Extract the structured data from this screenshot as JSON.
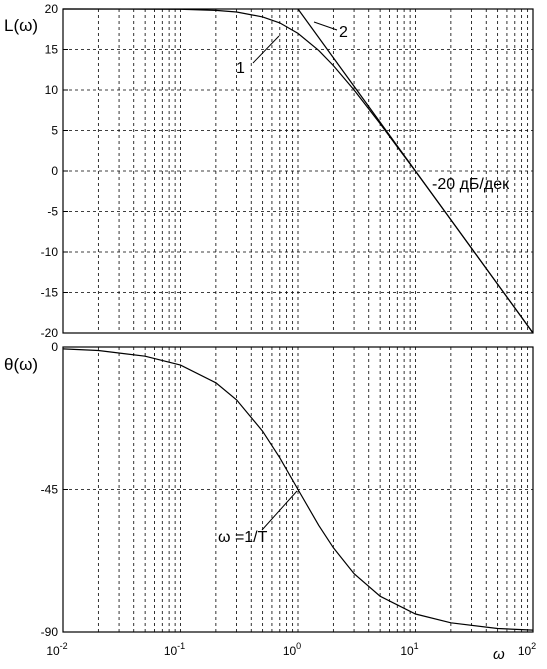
{
  "chart_data": [
    {
      "type": "line",
      "ylabel": "L(ω)",
      "xscale": "log",
      "xlim": [
        0.01,
        100
      ],
      "ylim": [
        -20,
        20
      ],
      "yticks": [
        20,
        15,
        10,
        5,
        0,
        -5,
        -10,
        -15,
        -20
      ],
      "grid": true,
      "series": [
        {
          "x": [
            0.01,
            0.05,
            0.1,
            0.2,
            0.3,
            0.5,
            0.7,
            1,
            1.5,
            2,
            3,
            5,
            7,
            10,
            20,
            50,
            100
          ],
          "values": [
            20.0,
            19.99,
            19.96,
            19.83,
            19.63,
            19.03,
            18.28,
            16.99,
            14.89,
            13.01,
            10.0,
            5.85,
            2.97,
            -0.04,
            -6.02,
            -13.98,
            -20.0
          ]
        },
        {
          "x": [
            1,
            100
          ],
          "values": [
            20,
            -20
          ]
        }
      ],
      "annotations": [
        {
          "text": "1",
          "target_x": 0.85,
          "target_y": 18.2
        },
        {
          "text": "2",
          "target_x": 1.5,
          "target_y": 16.6
        },
        {
          "text": "-20 дБ/дек"
        }
      ]
    },
    {
      "type": "line",
      "ylabel": "θ(ω)",
      "xlabel": "ω",
      "xscale": "log",
      "xlim": [
        0.01,
        100
      ],
      "ylim": [
        -90,
        0
      ],
      "yticks": [
        0,
        -45,
        -90
      ],
      "xticks": [
        "10^-2",
        "10^-1",
        "10^0",
        "10^1",
        "10^2"
      ],
      "grid": true,
      "series": [
        {
          "x": [
            0.01,
            0.02,
            0.05,
            0.1,
            0.2,
            0.3,
            0.5,
            0.7,
            1,
            1.5,
            2,
            3,
            5,
            10,
            20,
            50,
            100
          ],
          "values": [
            -0.6,
            -1.1,
            -2.9,
            -5.7,
            -11.3,
            -16.7,
            -26.6,
            -35.0,
            -45.0,
            -56.3,
            -63.4,
            -71.6,
            -78.7,
            -84.3,
            -87.1,
            -88.9,
            -89.4
          ]
        }
      ],
      "annotations": [
        {
          "text": "ω =1/T",
          "target_x": 1,
          "target_y": -45
        }
      ]
    }
  ]
}
